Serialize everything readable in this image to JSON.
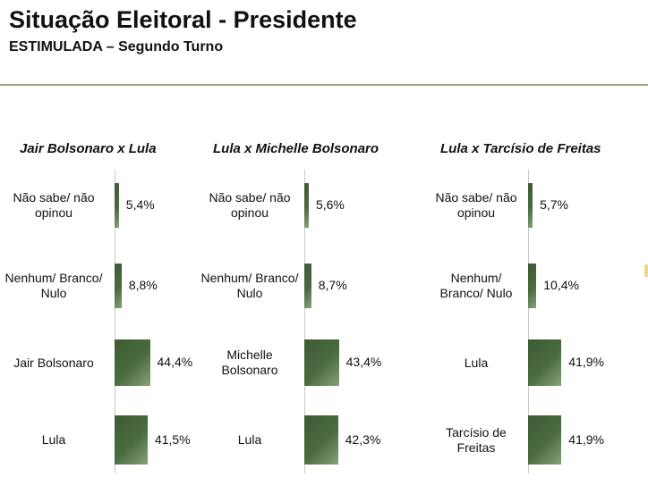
{
  "header": {
    "title": "Situação Eleitoral - Presidente",
    "subtitle": "ESTIMULADA – Segundo Turno"
  },
  "colors": {
    "bar": "#4a6b40",
    "rule": "#9aab86"
  },
  "chart_data": [
    {
      "type": "bar",
      "orientation": "horizontal",
      "title": "Jair Bolsonaro x Lula",
      "categories": [
        "Não sabe/ não opinou",
        "Nenhum/ Branco/ Nulo",
        "Jair Bolsonaro",
        "Lula"
      ],
      "values": [
        5.4,
        8.8,
        44.4,
        41.5
      ],
      "labels": [
        "5,4%",
        "8,8%",
        "44,4%",
        "41,5%"
      ]
    },
    {
      "type": "bar",
      "orientation": "horizontal",
      "title": "Lula x Michelle Bolsonaro",
      "categories": [
        "Não sabe/ não opinou",
        "Nenhum/ Branco/ Nulo",
        "Michelle Bolsonaro",
        "Lula"
      ],
      "values": [
        5.6,
        8.7,
        43.4,
        42.3
      ],
      "labels": [
        "5,6%",
        "8,7%",
        "43,4%",
        "42,3%"
      ]
    },
    {
      "type": "bar",
      "orientation": "horizontal",
      "title": "Lula x Tarcísio de Freitas",
      "categories": [
        "Não sabe/ não opinou",
        "Nenhum/ Branco/ Nulo",
        "Lula",
        "Tarcísio de Freitas"
      ],
      "values": [
        5.7,
        10.4,
        41.9,
        41.9
      ],
      "labels": [
        "5,7%",
        "10,4%",
        "41,9%",
        "41,9%"
      ]
    }
  ]
}
